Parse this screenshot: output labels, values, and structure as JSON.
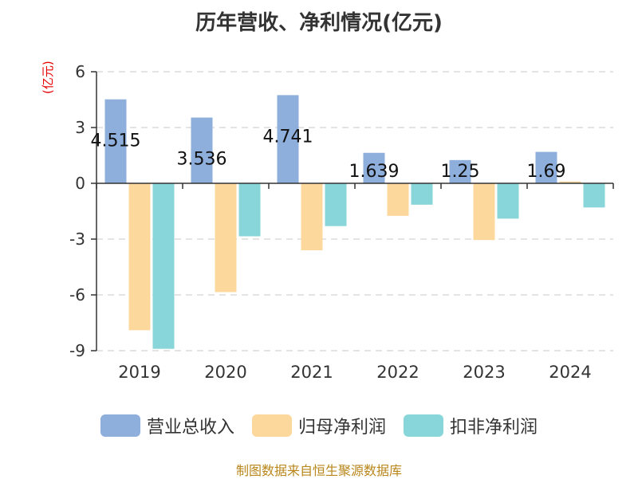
{
  "chart_data": {
    "type": "bar",
    "title": "历年营收、净利情况(亿元)",
    "unit_label": "(亿元)",
    "categories": [
      "2019",
      "2020",
      "2021",
      "2022",
      "2023",
      "2024"
    ],
    "series": [
      {
        "name": "营业总收入",
        "color": "#8eaedc",
        "values": [
          4.515,
          3.536,
          4.741,
          1.639,
          1.25,
          1.69
        ]
      },
      {
        "name": "归母净利润",
        "color": "#fdd89c",
        "values": [
          -7.9,
          -5.85,
          -3.6,
          -1.75,
          -3.05,
          0.1
        ]
      },
      {
        "name": "扣非净利润",
        "color": "#88d6d9",
        "values": [
          -8.9,
          -2.85,
          -2.3,
          -1.15,
          -1.9,
          -1.3
        ]
      }
    ],
    "data_labels": [
      "4.515",
      "3.536",
      "4.741",
      "1.639",
      "1.25",
      "1.69"
    ],
    "yticks": [
      "6",
      "3",
      "0",
      "-3",
      "-6",
      "-9"
    ],
    "ylim": [
      -9,
      6
    ],
    "grid": true,
    "legend_position": "bottom"
  },
  "source_note": "制图数据来自恒生聚源数据库"
}
